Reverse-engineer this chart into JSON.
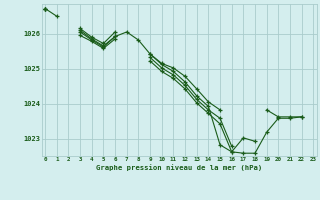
{
  "bg_color": "#d4eeee",
  "grid_color": "#aacccc",
  "line_color": "#1a5c1a",
  "marker_color": "#1a5c1a",
  "xlabel": "Graphe pression niveau de la mer (hPa)",
  "xlabel_color": "#1a5c1a",
  "ylabel_ticks": [
    1023,
    1024,
    1025,
    1026
  ],
  "xticks": [
    0,
    1,
    2,
    3,
    4,
    5,
    6,
    7,
    8,
    9,
    10,
    11,
    12,
    13,
    14,
    15,
    16,
    17,
    18,
    19,
    20,
    21,
    22,
    23
  ],
  "ylim": [
    1022.5,
    1026.85
  ],
  "xlim": [
    -0.3,
    23.3
  ],
  "series": [
    [
      1026.72,
      1026.5,
      null,
      1026.15,
      1025.9,
      1025.72,
      1026.05,
      null,
      null,
      1025.42,
      1025.15,
      1025.02,
      1024.78,
      1024.42,
      1024.05,
      1023.82,
      null,
      null,
      null,
      1023.82,
      1023.62,
      1023.62,
      1023.62,
      null
    ],
    [
      1026.72,
      null,
      null,
      1026.1,
      1025.85,
      1025.65,
      1025.92,
      1026.05,
      1025.82,
      1025.42,
      1025.12,
      1024.92,
      1024.62,
      1024.22,
      1023.92,
      1022.82,
      1022.62,
      1022.58,
      1022.58,
      1023.18,
      1023.58,
      1023.58,
      1023.62,
      null
    ],
    [
      1026.72,
      null,
      null,
      1026.05,
      1025.82,
      1025.62,
      1025.92,
      null,
      null,
      1025.32,
      1025.02,
      1024.82,
      1024.52,
      1024.12,
      1023.82,
      1023.58,
      1022.78,
      null,
      null,
      null,
      null,
      null,
      null,
      null
    ],
    [
      1026.72,
      null,
      null,
      1025.95,
      1025.78,
      1025.58,
      1025.85,
      null,
      null,
      1025.22,
      1024.92,
      1024.72,
      1024.42,
      1024.02,
      1023.72,
      1023.42,
      1022.62,
      1023.02,
      1022.92,
      null,
      null,
      null,
      null,
      null
    ]
  ]
}
